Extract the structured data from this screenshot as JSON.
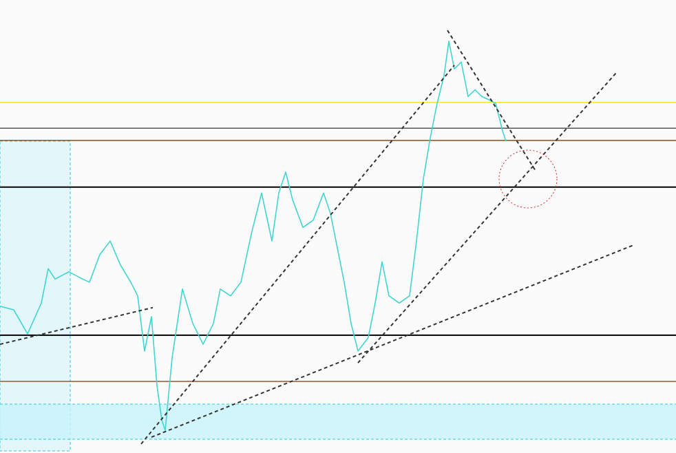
{
  "chart_data": {
    "type": "line",
    "xlim": [
      0,
      982
    ],
    "ylim": [
      0,
      100
    ],
    "x": [
      0,
      20,
      40,
      60,
      70,
      80,
      100,
      120,
      130,
      145,
      160,
      175,
      190,
      200,
      210,
      220,
      228,
      235,
      240,
      250,
      265,
      280,
      295,
      310,
      320,
      335,
      350,
      365,
      380,
      395,
      405,
      415,
      425,
      440,
      455,
      470,
      480,
      490,
      500,
      510,
      520,
      535,
      545,
      555,
      565,
      580,
      595,
      605,
      615,
      625,
      635,
      645,
      652,
      660,
      670,
      680,
      690,
      700,
      710,
      720,
      730,
      735
    ],
    "series": [
      {
        "color": "#3fd6d0",
        "values": [
          32.4,
          31.6,
          26.3,
          33.1,
          40.7,
          38.4,
          40.0,
          38.4,
          37.7,
          43.8,
          46.8,
          41.5,
          37.7,
          34.7,
          22.5,
          30.1,
          14.9,
          7.3,
          5.0,
          21.0,
          36.2,
          28.6,
          24.0,
          28.6,
          36.2,
          34.7,
          37.7,
          48.3,
          57.4,
          46.8,
          57.4,
          62.0,
          55.9,
          49.8,
          51.4,
          57.4,
          52.9,
          45.3,
          37.7,
          28.6,
          22.5,
          25.5,
          33.1,
          42.2,
          34.7,
          33.1,
          34.7,
          46.8,
          60.5,
          69.6,
          77.2,
          83.3,
          90.9,
          84.8,
          86.3,
          78.7,
          80.2,
          78.7,
          78.0,
          77.2,
          71.1,
          68.8
        ]
      }
    ],
    "levels": [
      {
        "value": 77.4,
        "color": "#ffe033"
      },
      {
        "value": 71.7,
        "color": "#555555"
      },
      {
        "value": 69.0,
        "color": "#8b4a1a"
      },
      {
        "value": 58.7,
        "color": "#000000"
      },
      {
        "value": 26.0,
        "color": "#000000"
      },
      {
        "value": 15.8,
        "color": "#a0522d"
      }
    ],
    "trendlines": [
      {
        "x": [
          0,
          222
        ],
        "values": [
          24.0,
          32.1
        ]
      },
      {
        "x": [
          205,
          660
        ],
        "values": [
          2.0,
          85.6
        ]
      },
      {
        "x": [
          520,
          895
        ],
        "values": [
          19.9,
          83.9
        ]
      },
      {
        "x": [
          220,
          922
        ],
        "values": [
          3.5,
          46.0
        ]
      },
      {
        "x": [
          650,
          778
        ],
        "values": [
          93.3,
          62.3
        ]
      }
    ]
  }
}
